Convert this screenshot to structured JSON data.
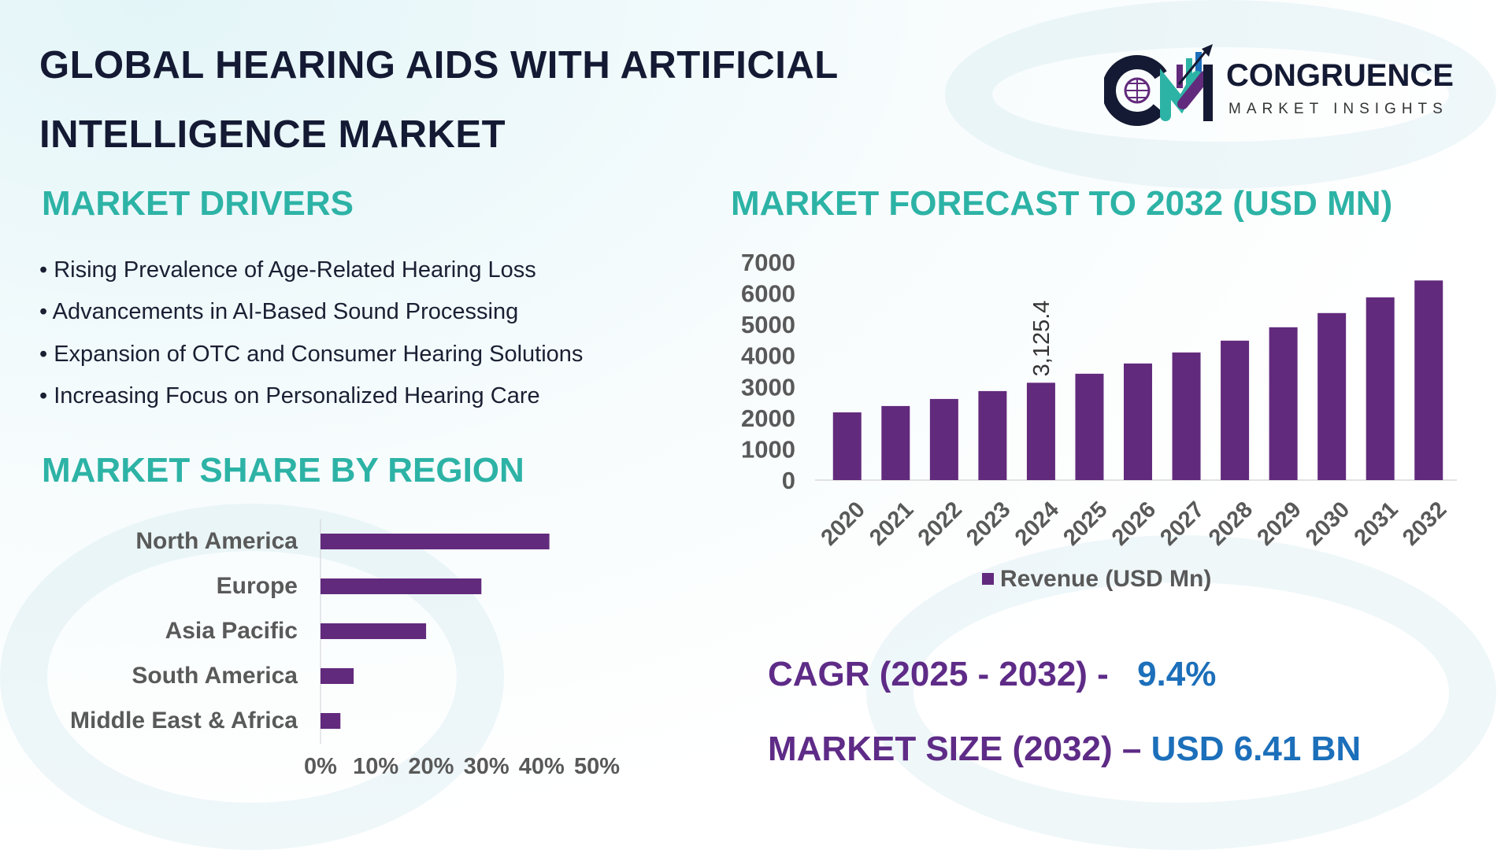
{
  "header": {
    "title_line1": "GLOBAL HEARING AIDS WITH ARTIFICIAL",
    "title_line2": "INTELLIGENCE MARKET",
    "logo": {
      "brand": "CONGRUENCE",
      "tagline": "MARKET INSIGHTS",
      "initials": "CM"
    }
  },
  "drivers": {
    "heading": "MARKET DRIVERS",
    "items": [
      "Rising Prevalence of Age-Related Hearing Loss",
      "Advancements in AI-Based Sound Processing",
      "Expansion of OTC and Consumer Hearing Solutions",
      "Increasing Focus on Personalized Hearing Care"
    ]
  },
  "region": {
    "heading": "MARKET SHARE BY REGION"
  },
  "forecast": {
    "heading": "MARKET FORECAST TO 2032 (USD MN)"
  },
  "kpis": {
    "cagr_label": "CAGR (2025 - 2032) -",
    "cagr_value": "9.4%",
    "size_label": "MARKET SIZE (2032) –",
    "size_value": "USD 6.41 BN"
  },
  "colors": {
    "bar": "#622a7c",
    "accent_teal": "#2db3a6",
    "kpi_purple": "#5e2b87",
    "kpi_blue": "#1c6fba"
  },
  "chart_data": [
    {
      "type": "bar",
      "orientation": "horizontal",
      "categories": [
        "North America",
        "Europe",
        "Asia Pacific",
        "South America",
        "Middle East & Africa"
      ],
      "values": [
        41.4,
        29.1,
        19.1,
        6.0,
        3.6
      ],
      "unit": "%",
      "xlim": [
        0,
        50
      ],
      "xticks": [
        "0%",
        "10%",
        "20%",
        "30%",
        "40%",
        "50%"
      ],
      "grid": false
    },
    {
      "type": "bar",
      "categories": [
        "2020",
        "2021",
        "2022",
        "2023",
        "2024",
        "2025",
        "2026",
        "2027",
        "2028",
        "2029",
        "2030",
        "2031",
        "2032"
      ],
      "series": [
        {
          "name": "Revenue (USD Mn)",
          "values": [
            2175,
            2378,
            2605,
            2858,
            3125.4,
            3415,
            3744,
            4098,
            4477,
            4907,
            5363,
            5868,
            6410
          ]
        }
      ],
      "data_labels": [
        {
          "category": "2024",
          "text": "3,125.4"
        }
      ],
      "ylim": [
        0,
        7000
      ],
      "yticks": [
        "0",
        "1000",
        "2000",
        "3000",
        "4000",
        "5000",
        "6000",
        "7000"
      ],
      "legend": "bottom",
      "grid": false
    }
  ]
}
